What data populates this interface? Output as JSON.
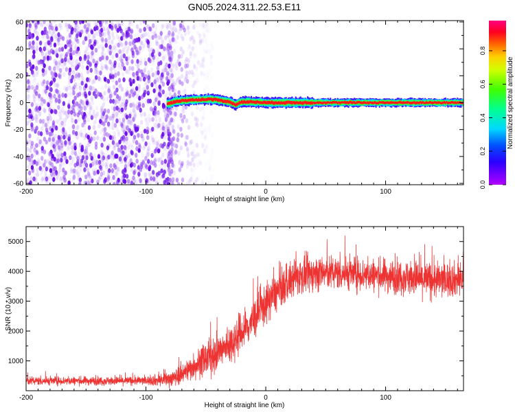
{
  "title": "GN05.2024.311.22.53.E11",
  "colors": {
    "snr_line": "#ee3333",
    "axis": "#000000"
  },
  "colorbar": {
    "label": "Normalized spectral amplitude",
    "ticks": [
      0.0,
      0.2,
      0.4,
      0.6,
      0.8
    ],
    "tick_labels": [
      "0.0",
      "0.2",
      "0.4",
      "0.6",
      "0.8"
    ],
    "range": [
      0,
      0.98
    ]
  },
  "chart_data": [
    {
      "type": "heatmap",
      "title": "GN05.2024.311.22.53.E11",
      "xlabel": "Height of straight line (km)",
      "ylabel": "Frequency (Hz)",
      "xlim": [
        -200,
        165
      ],
      "ylim": [
        -61,
        61
      ],
      "xticks": [
        -200,
        -100,
        0,
        100
      ],
      "xtick_labels": [
        "-200",
        "-100",
        "0",
        "100"
      ],
      "yticks": [
        -60,
        -40,
        -20,
        0,
        20,
        40,
        60
      ],
      "ytick_labels": [
        "-60",
        "-40",
        "-20",
        "0",
        "20",
        "40",
        "60"
      ],
      "colormap": "rainbow (violet-blue-cyan-green-yellow-orange-red-magenta)",
      "noise_region_x": [
        -200,
        -80
      ],
      "signal_start_x": -82,
      "signal_center_frequency": 0,
      "signal_track": [
        [
          -82,
          -1
        ],
        [
          -75,
          1
        ],
        [
          -70,
          1.5
        ],
        [
          -60,
          2
        ],
        [
          -50,
          2.5
        ],
        [
          -45,
          2.5
        ],
        [
          -40,
          2
        ],
        [
          -30,
          0.5
        ],
        [
          -25,
          -1.5
        ],
        [
          -20,
          0.5
        ],
        [
          -10,
          0.5
        ],
        [
          0,
          0
        ],
        [
          20,
          0
        ],
        [
          60,
          0
        ],
        [
          100,
          0
        ],
        [
          140,
          0
        ],
        [
          160,
          0
        ]
      ]
    },
    {
      "type": "line",
      "title": "",
      "xlabel": "Height of straight line (km)",
      "ylabel": "SNR (10 * v/v)",
      "xlim": [
        -200,
        165
      ],
      "ylim": [
        0,
        5500
      ],
      "xticks": [
        -200,
        -100,
        0,
        100
      ],
      "xtick_labels": [
        "-200",
        "-100",
        "0",
        "100"
      ],
      "yticks": [
        1000,
        2000,
        3000,
        4000,
        5000
      ],
      "ytick_labels": [
        "1000",
        "2000",
        "3000",
        "4000",
        "5000"
      ],
      "series": [
        {
          "values_trend": [
            [
              -200,
              330
            ],
            [
              -180,
              330
            ],
            [
              -160,
              330
            ],
            [
              -140,
              330
            ],
            [
              -120,
              330
            ],
            [
              -100,
              340
            ],
            [
              -85,
              360
            ],
            [
              -75,
              450
            ],
            [
              -65,
              700
            ],
            [
              -55,
              950
            ],
            [
              -45,
              1150
            ],
            [
              -35,
              1400
            ],
            [
              -25,
              1750
            ],
            [
              -15,
              2150
            ],
            [
              -5,
              2650
            ],
            [
              5,
              3150
            ],
            [
              15,
              3500
            ],
            [
              25,
              3800
            ],
            [
              35,
              3900
            ],
            [
              45,
              3950
            ],
            [
              60,
              3950
            ],
            [
              80,
              3900
            ],
            [
              100,
              3850
            ],
            [
              120,
              3800
            ],
            [
              140,
              3700
            ],
            [
              165,
              3750
            ]
          ],
          "noise_amplitude": [
            [
              -200,
              130
            ],
            [
              -100,
              130
            ],
            [
              -75,
              250
            ],
            [
              -50,
              500
            ],
            [
              -25,
              600
            ],
            [
              0,
              600
            ],
            [
              25,
              550
            ],
            [
              60,
              500
            ],
            [
              100,
              500
            ],
            [
              140,
              550
            ],
            [
              165,
              500
            ]
          ]
        }
      ]
    }
  ]
}
